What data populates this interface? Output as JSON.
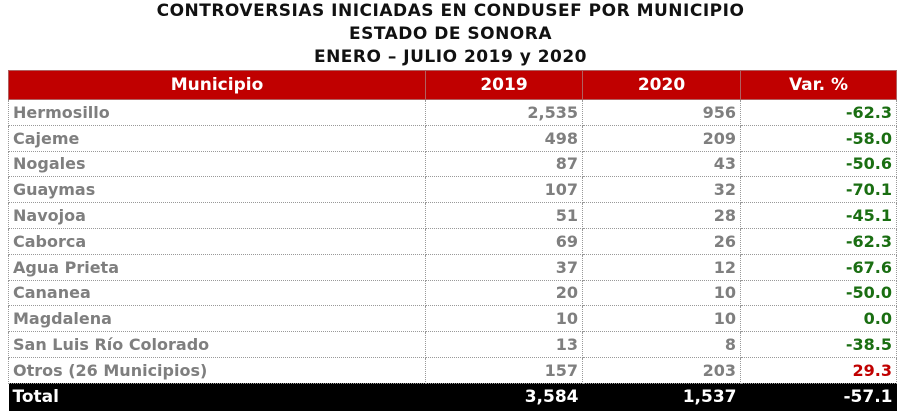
{
  "title": [
    "CONTROVERSIAS INICIADAS EN CONDUSEF POR MUNICIPIO",
    "ESTADO DE SONORA",
    "ENERO – JULIO 2019 y 2020"
  ],
  "colors": {
    "header": "#c00000",
    "decrease": "#1a6e12",
    "increase": "#c00000"
  },
  "headers": [
    "Municipio",
    "2019",
    "2020",
    "Var. %"
  ],
  "rows": [
    [
      "Hermosillo",
      "2,535",
      "956",
      "-62.3"
    ],
    [
      "Cajeme",
      "498",
      "209",
      "-58.0"
    ],
    [
      "Nogales",
      "87",
      "43",
      "-50.6"
    ],
    [
      "Guaymas",
      "107",
      "32",
      "-70.1"
    ],
    [
      "Navojoa",
      "51",
      "28",
      "-45.1"
    ],
    [
      "Caborca",
      "69",
      "26",
      "-62.3"
    ],
    [
      "Agua Prieta",
      "37",
      "12",
      "-67.6"
    ],
    [
      "Cananea",
      "20",
      "10",
      "-50.0"
    ],
    [
      "Magdalena",
      "10",
      "10",
      "0.0"
    ],
    [
      "San Luis Río Colorado",
      "13",
      "8",
      "-38.5"
    ],
    [
      "Otros (26 Municipios)",
      "157",
      "203",
      "29.3"
    ]
  ],
  "total": [
    "Total",
    "3,584",
    "1,537",
    "-57.1"
  ]
}
